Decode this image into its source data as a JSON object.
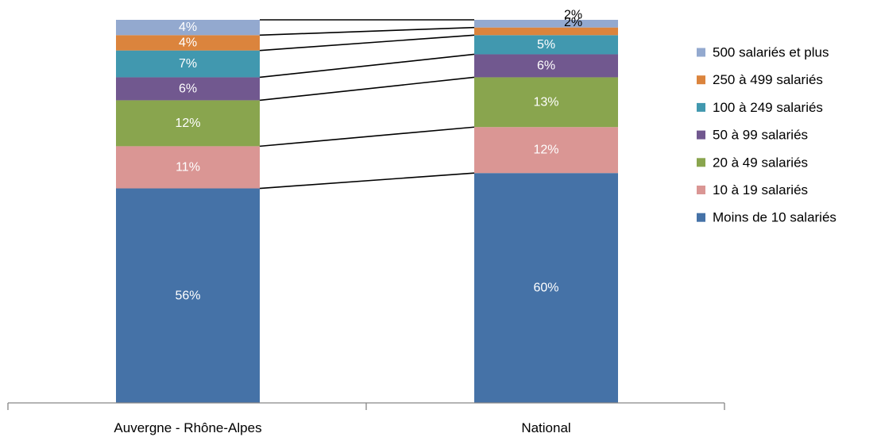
{
  "chart_data": {
    "type": "bar",
    "stacked": true,
    "percent_stacked": true,
    "categories": [
      "Auvergne - Rhône-Alpes",
      "National"
    ],
    "series": [
      {
        "name": "Moins de 10 salariés",
        "color": "#4572A7",
        "values": [
          56,
          60
        ]
      },
      {
        "name": "10 à 19 salariés",
        "color": "#DA9694",
        "values": [
          11,
          12
        ]
      },
      {
        "name": "20 à 49 salariés",
        "color": "#89A54E",
        "values": [
          12,
          13
        ]
      },
      {
        "name": "50 à 99 salariés",
        "color": "#71588F",
        "values": [
          6,
          6
        ]
      },
      {
        "name": "100 à 249 salariés",
        "color": "#4198AF",
        "values": [
          7,
          5
        ]
      },
      {
        "name": "250 à 499 salariés",
        "color": "#DB843D",
        "values": [
          4,
          2
        ]
      },
      {
        "name": "500 salariés et plus",
        "color": "#93A9CF",
        "values": [
          4,
          2
        ]
      }
    ],
    "data_labels": [
      [
        "56%",
        "11%",
        "12%",
        "6%",
        "7%",
        "4%",
        "4%"
      ],
      [
        "60%",
        "12%",
        "13%",
        "6%",
        "5%",
        "2%",
        "2%"
      ]
    ],
    "legend_position": "right",
    "series_lines": true,
    "grid": false,
    "ylim": [
      0,
      100
    ]
  }
}
